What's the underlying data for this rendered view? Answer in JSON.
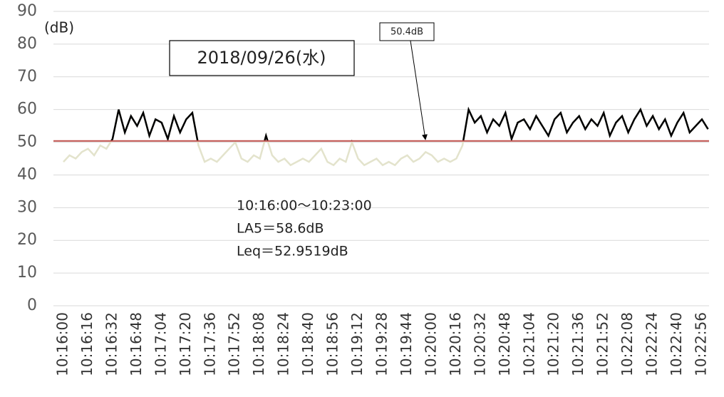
{
  "chart_data": {
    "type": "line",
    "y_label": "(dB)",
    "date_label": "2018/09/26(水)",
    "annotations": [
      "10:16:00〜10:23:00",
      "LA5＝58.6dB",
      "Leq＝52.9519dB"
    ],
    "threshold": {
      "value": 50.4,
      "label": "50.4dB"
    },
    "threshold_color": "#c0504d",
    "color": "#e3e3cc",
    "highlight_color": "#000000",
    "grid": true,
    "ylim": [
      0,
      90
    ],
    "yticks": [
      0,
      10,
      20,
      30,
      40,
      50,
      60,
      70,
      80,
      90
    ],
    "categories": [
      "10:16:00",
      null,
      null,
      null,
      "10:16:16",
      null,
      null,
      null,
      "10:16:32",
      null,
      null,
      null,
      "10:16:48",
      null,
      null,
      null,
      "10:17:04",
      null,
      null,
      null,
      "10:17:20",
      null,
      null,
      null,
      "10:17:36",
      null,
      null,
      null,
      "10:17:52",
      null,
      null,
      null,
      "10:18:08",
      null,
      null,
      null,
      "10:18:24",
      null,
      null,
      null,
      "10:18:40",
      null,
      null,
      null,
      "10:18:56",
      null,
      null,
      null,
      "10:19:12",
      null,
      null,
      null,
      "10:19:28",
      null,
      null,
      null,
      "10:19:44",
      null,
      null,
      null,
      "10:20:00",
      null,
      null,
      null,
      "10:20:16",
      null,
      null,
      null,
      "10:20:32",
      null,
      null,
      null,
      "10:20:48",
      null,
      null,
      null,
      "10:21:04",
      null,
      null,
      null,
      "10:21:20",
      null,
      null,
      null,
      "10:21:36",
      null,
      null,
      null,
      "10:21:52",
      null,
      null,
      null,
      "10:22:08",
      null,
      null,
      null,
      "10:22:24",
      null,
      null,
      null,
      "10:22:40",
      null,
      null,
      null,
      "10:22:56",
      null
    ],
    "values": [
      44,
      46,
      45,
      47,
      48,
      46,
      49,
      48,
      51,
      60,
      53,
      58,
      55,
      59,
      52,
      57,
      56,
      51,
      58,
      53,
      57,
      59,
      49,
      44,
      45,
      44,
      46,
      48,
      50,
      45,
      44,
      46,
      45,
      52,
      46,
      44,
      45,
      43,
      44,
      45,
      44,
      46,
      48,
      44,
      43,
      45,
      44,
      50,
      45,
      43,
      44,
      45,
      43,
      44,
      43,
      45,
      46,
      44,
      45,
      47,
      46,
      44,
      45,
      44,
      45,
      49,
      60,
      56,
      58,
      53,
      57,
      55,
      59,
      51,
      56,
      57,
      54,
      58,
      55,
      52,
      57,
      59,
      53,
      56,
      58,
      54,
      57,
      55,
      59,
      52,
      56,
      58,
      53,
      57,
      60,
      55,
      58,
      54,
      57,
      52,
      56,
      59,
      53,
      55,
      57,
      54
    ]
  }
}
